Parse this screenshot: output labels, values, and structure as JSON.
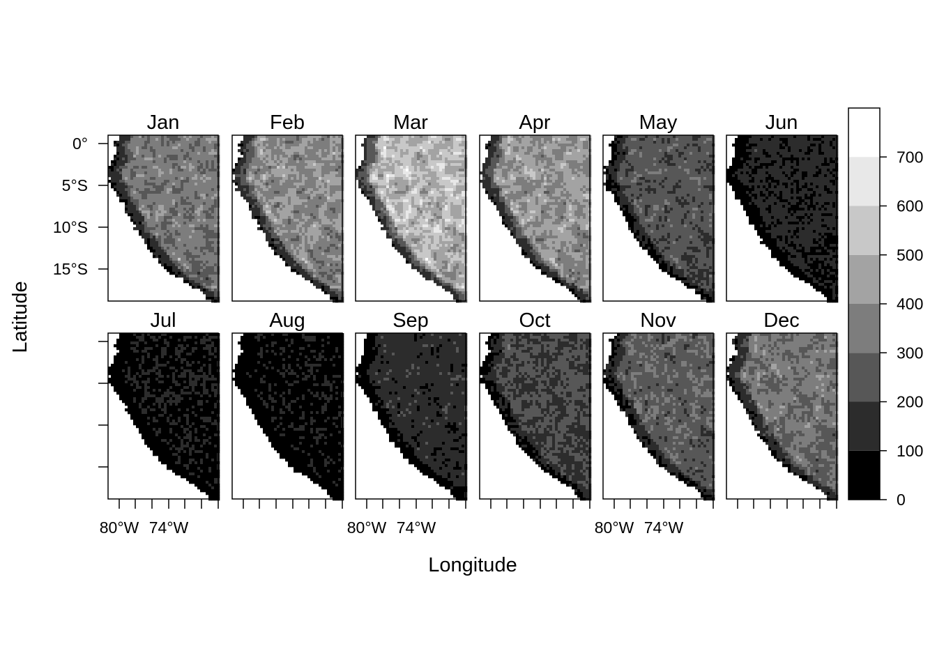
{
  "chart_data": {
    "type": "heatmap",
    "title": "",
    "xlabel": "Longitude",
    "ylabel": "Latitude",
    "layout": {
      "rows": 2,
      "cols": 6
    },
    "panels": [
      {
        "name": "Jan",
        "level": 0.5
      },
      {
        "name": "Feb",
        "level": 0.58
      },
      {
        "name": "Mar",
        "level": 0.76
      },
      {
        "name": "Apr",
        "level": 0.62
      },
      {
        "name": "May",
        "level": 0.36
      },
      {
        "name": "Jun",
        "level": 0.18
      },
      {
        "name": "Jul",
        "level": 0.13
      },
      {
        "name": "Aug",
        "level": 0.11
      },
      {
        "name": "Sep",
        "level": 0.22
      },
      {
        "name": "Oct",
        "level": 0.31
      },
      {
        "name": "Nov",
        "level": 0.4
      },
      {
        "name": "Dec",
        "level": 0.48
      }
    ],
    "x_ticks": [
      "80°W",
      "74°W"
    ],
    "y_ticks": [
      "0°",
      "5°S",
      "10°S",
      "15°S"
    ],
    "colorkey": {
      "range": [
        0,
        800
      ],
      "tick_values": [
        0,
        100,
        200,
        300,
        400,
        500,
        600,
        700
      ],
      "tick_labels": [
        "0",
        "100",
        "200",
        "300",
        "400",
        "500",
        "600",
        "700"
      ],
      "colors": [
        "#000000",
        "#2c2c2c",
        "#575757",
        "#7d7d7d",
        "#a3a3a3",
        "#c8c8c8",
        "#e8e8e8",
        "#ffffff"
      ]
    }
  }
}
